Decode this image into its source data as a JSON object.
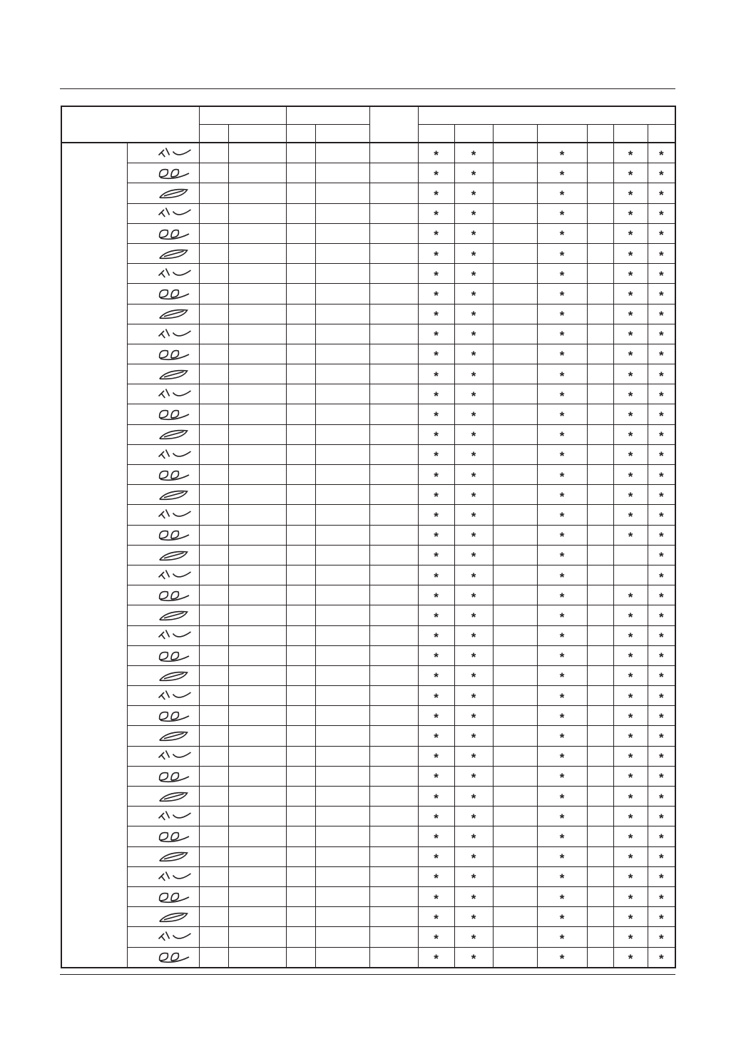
{
  "star_symbol": "*",
  "default_marks": [
    "*",
    "*",
    "",
    "*",
    "",
    "*",
    "*"
  ],
  "rows": [
    {
      "icon": "branch-leaf-stitch-icon"
    },
    {
      "icon": "double-leaf-stitch-icon"
    },
    {
      "icon": "feather-leaf-stitch-icon"
    },
    {
      "icon": "lotus-stitch-icon"
    },
    {
      "icon": "vine-leaf-stitch-icon"
    },
    {
      "icon": "leaf-pair-stitch-icon"
    },
    {
      "icon": "swoosh-leaf-stitch-icon"
    },
    {
      "icon": "sprout-stitch-icon"
    },
    {
      "icon": "flower-chain-stitch-icon"
    },
    {
      "icon": "tulip-row-stitch-icon"
    },
    {
      "icon": "starburst-stitch-icon"
    },
    {
      "icon": "berry-vine-stitch-icon"
    },
    {
      "icon": "rose-pair-stitch-icon"
    },
    {
      "icon": "rose-vine-stitch-icon"
    },
    {
      "icon": "floral-sprig-stitch-icon"
    },
    {
      "icon": "blossom-chain-stitch-icon"
    },
    {
      "icon": "bell-flower-stitch-icon"
    },
    {
      "icon": "tulip-pair-stitch-icon"
    },
    {
      "icon": "leaf-blossom-stitch-icon"
    },
    {
      "icon": "leaf-flower-leaf-stitch-icon"
    },
    {
      "icon": "daisy-leaf-stitch-icon",
      "marks": [
        "*",
        "*",
        "",
        "*",
        "",
        "",
        "*"
      ]
    },
    {
      "icon": "stem-flower-stitch-icon",
      "marks": [
        "*",
        "*",
        "",
        "*",
        "",
        "",
        "*"
      ]
    },
    {
      "icon": "spiral-leaf-stitch-icon"
    },
    {
      "icon": "spiral-wave-stitch-icon"
    },
    {
      "icon": "leaf-bud-stitch-icon"
    },
    {
      "icon": "flower-link-stitch-icon"
    },
    {
      "icon": "mountain-stitch-icon"
    },
    {
      "icon": "grass-stitch-icon"
    },
    {
      "icon": "bar-line-stitch-icon"
    },
    {
      "icon": "snowflake-band-stitch-icon"
    },
    {
      "icon": "asterisk-row-stitch-icon"
    },
    {
      "icon": "star-row-stitch-icon"
    },
    {
      "icon": "cross-row-stitch-icon"
    },
    {
      "icon": "lattice-stitch-icon"
    },
    {
      "icon": "double-x-stitch-icon"
    },
    {
      "icon": "y-pattern-stitch-icon"
    },
    {
      "icon": "greek-key-stitch-icon"
    },
    {
      "icon": "step-key-stitch-icon"
    },
    {
      "icon": "square-key-stitch-icon"
    },
    {
      "icon": "checker-pyramid-stitch-icon"
    },
    {
      "icon": "comb-stitch-icon"
    }
  ]
}
